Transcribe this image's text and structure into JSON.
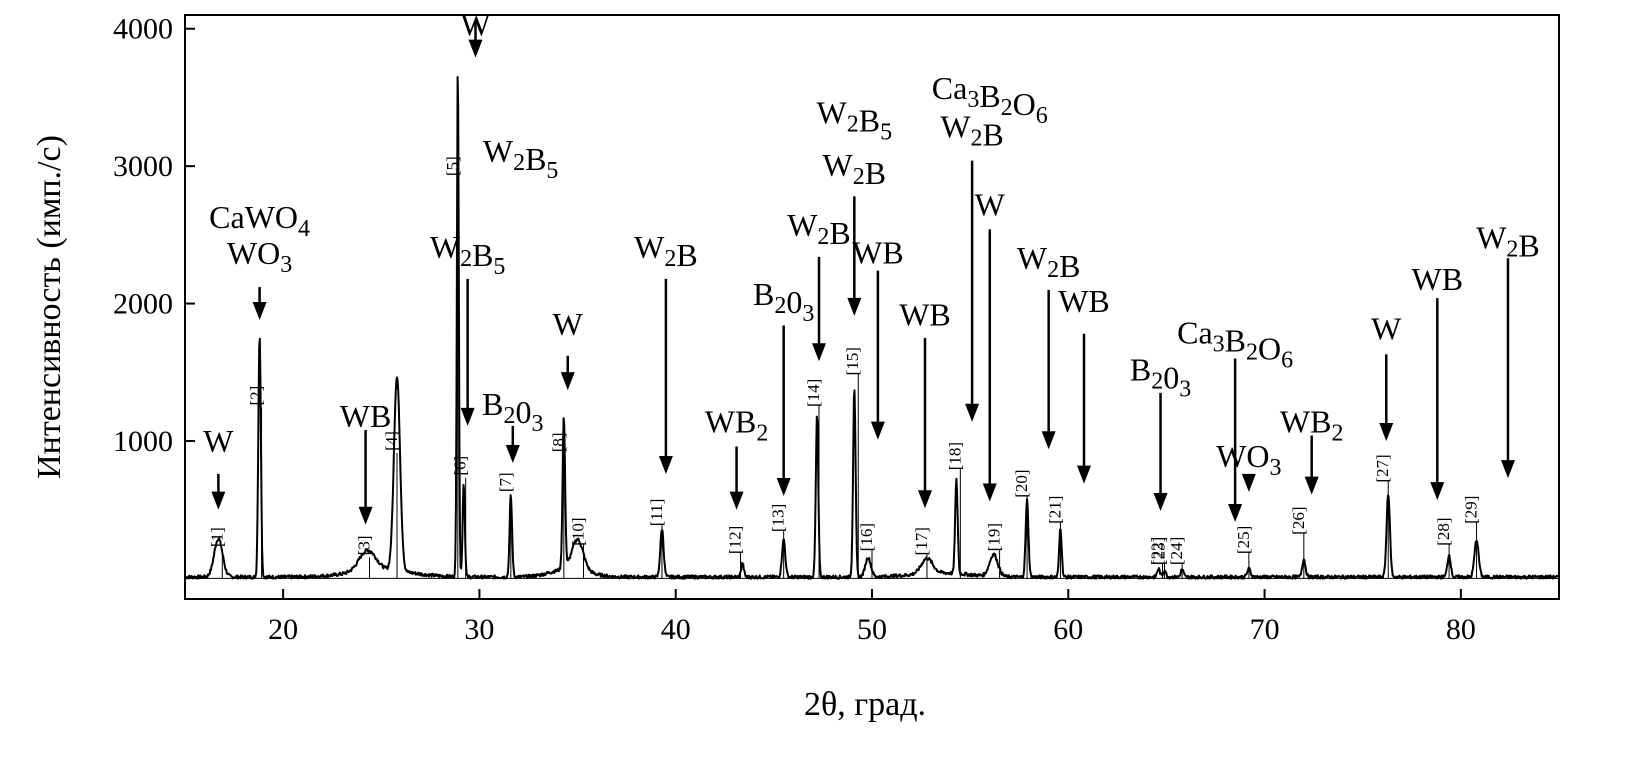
{
  "chart_data": {
    "type": "line",
    "xlabel": "2θ, град.",
    "ylabel": "Интенсивность (имп./с)",
    "xlim": [
      15,
      85
    ],
    "ylim": [
      -150,
      4100
    ],
    "x_ticks": [
      20,
      30,
      40,
      50,
      60,
      70,
      80
    ],
    "y_ticks": [
      1000,
      2000,
      3000,
      4000
    ],
    "y_tick_labels": [
      "1000",
      "2000",
      "3000",
      "4000"
    ],
    "grid": false,
    "legend": "none",
    "baseline": 0,
    "peaks": [
      {
        "id": "1",
        "x": 16.7,
        "height": 280,
        "width": 0.3
      },
      {
        "id": "2",
        "x": 18.8,
        "height": 1760,
        "width": 0.09
      },
      {
        "id": "3",
        "x": 24.3,
        "height": 150,
        "width": 0.6
      },
      {
        "id": "4",
        "x": 25.8,
        "height": 1420,
        "width": 0.22
      },
      {
        "id": "5",
        "x": 28.9,
        "height": 3720,
        "width": 0.07
      },
      {
        "id": "6",
        "x": 29.2,
        "height": 680,
        "width": 0.08
      },
      {
        "id": "7",
        "x": 31.6,
        "height": 590,
        "width": 0.09
      },
      {
        "id": "8",
        "x": 34.3,
        "height": 1100,
        "width": 0.09
      },
      {
        "id": "10",
        "x": 35.0,
        "height": 220,
        "width": 0.4
      },
      {
        "id": "11",
        "x": 39.3,
        "height": 350,
        "width": 0.12
      },
      {
        "id": "12",
        "x": 43.4,
        "height": 100,
        "width": 0.1
      },
      {
        "id": "13",
        "x": 45.5,
        "height": 270,
        "width": 0.12
      },
      {
        "id": "14",
        "x": 47.2,
        "height": 1180,
        "width": 0.09
      },
      {
        "id": "15",
        "x": 49.1,
        "height": 1380,
        "width": 0.09
      },
      {
        "id": "16",
        "x": 49.8,
        "height": 140,
        "width": 0.2
      },
      {
        "id": "17",
        "x": 52.8,
        "height": 110,
        "width": 0.4
      },
      {
        "id": "18",
        "x": 54.3,
        "height": 680,
        "width": 0.09
      },
      {
        "id": "19",
        "x": 56.2,
        "height": 160,
        "width": 0.3
      },
      {
        "id": "20",
        "x": 57.9,
        "height": 560,
        "width": 0.1
      },
      {
        "id": "21",
        "x": 59.6,
        "height": 360,
        "width": 0.09
      },
      {
        "id": "22",
        "x": 64.6,
        "height": 60,
        "width": 0.1
      },
      {
        "id": "23",
        "x": 64.9,
        "height": 50,
        "width": 0.1
      },
      {
        "id": "24",
        "x": 65.8,
        "height": 55,
        "width": 0.1
      },
      {
        "id": "25",
        "x": 69.2,
        "height": 60,
        "width": 0.12
      },
      {
        "id": "26",
        "x": 72.0,
        "height": 130,
        "width": 0.12
      },
      {
        "id": "27",
        "x": 76.3,
        "height": 610,
        "width": 0.12
      },
      {
        "id": "28",
        "x": 79.4,
        "height": 160,
        "width": 0.12
      },
      {
        "id": "29",
        "x": 80.8,
        "height": 270,
        "width": 0.15
      }
    ],
    "peak_labels": [
      {
        "text": "[1]",
        "x": 16.9,
        "y": 300
      },
      {
        "text": "[2]",
        "x": 18.9,
        "y": 1330
      },
      {
        "text": "[3]",
        "x": 24.4,
        "y": 240
      },
      {
        "text": "[4]",
        "x": 25.8,
        "y": 1000
      },
      {
        "text": "[5]",
        "x": 28.9,
        "y": 3000
      },
      {
        "text": "[6]",
        "x": 29.3,
        "y": 820
      },
      {
        "text": "[7]",
        "x": 31.6,
        "y": 700
      },
      {
        "text": "[8]",
        "x": 34.3,
        "y": 990
      },
      {
        "text": "[10]",
        "x": 35.3,
        "y": 340
      },
      {
        "text": "[11]",
        "x": 39.3,
        "y": 480
      },
      {
        "text": "[12]",
        "x": 43.3,
        "y": 280
      },
      {
        "text": "[13]",
        "x": 45.5,
        "y": 440
      },
      {
        "text": "[14]",
        "x": 47.3,
        "y": 1350
      },
      {
        "text": "[15]",
        "x": 49.3,
        "y": 1580
      },
      {
        "text": "[16]",
        "x": 50.0,
        "y": 300
      },
      {
        "text": "[17]",
        "x": 52.8,
        "y": 270
      },
      {
        "text": "[18]",
        "x": 54.5,
        "y": 890
      },
      {
        "text": "[19]",
        "x": 56.5,
        "y": 300
      },
      {
        "text": "[20]",
        "x": 57.9,
        "y": 690
      },
      {
        "text": "[21]",
        "x": 59.6,
        "y": 500
      },
      {
        "text": "[22]",
        "x": 64.8,
        "y": 200
      },
      {
        "text": "[23]",
        "x": 64.9,
        "y": 200
      },
      {
        "text": "[24]",
        "x": 65.8,
        "y": 200
      },
      {
        "text": "[25]",
        "x": 69.2,
        "y": 280
      },
      {
        "text": "[26]",
        "x": 72.0,
        "y": 420
      },
      {
        "text": "[27]",
        "x": 76.3,
        "y": 800
      },
      {
        "text": "[28]",
        "x": 79.4,
        "y": 340
      },
      {
        "text": "[29]",
        "x": 80.8,
        "y": 500
      }
    ],
    "annotations": [
      {
        "label": "W",
        "x": 16.7,
        "label_y": 920,
        "arrow_top": 760,
        "arrow_tip": 500
      },
      {
        "label": "CaWO₄\nWO₃",
        "x": 18.8,
        "label_y": 2550,
        "arrow_top": 2120,
        "arrow_tip": 1880
      },
      {
        "label": "WB",
        "x": 24.2,
        "label_y": 1100,
        "arrow_top": 1080,
        "arrow_tip": 390
      },
      {
        "label": "W",
        "x": 29.8,
        "label_y": 3950,
        "arrow_top": 4060,
        "arrow_tip": 3790
      },
      {
        "label": "W₂B₅",
        "x": 32.1,
        "label_y": 3030,
        "arrow_top": null,
        "arrow_tip": null
      },
      {
        "label": "W₂B₅",
        "x": 29.4,
        "label_y": 2330,
        "arrow_top": 2180,
        "arrow_tip": 1110
      },
      {
        "label": "B₂0₃",
        "x": 31.7,
        "label_y": 1190,
        "arrow_top": 1110,
        "arrow_tip": 840
      },
      {
        "label": "W",
        "x": 34.5,
        "label_y": 1770,
        "arrow_top": 1620,
        "arrow_tip": 1370
      },
      {
        "label": "W₂B",
        "x": 39.5,
        "label_y": 2330,
        "arrow_top": 2180,
        "arrow_tip": 760
      },
      {
        "label": "WB₂",
        "x": 43.1,
        "label_y": 1060,
        "arrow_top": 960,
        "arrow_tip": 500
      },
      {
        "label": "B₂0₃",
        "x": 45.5,
        "label_y": 1990,
        "arrow_top": 1840,
        "arrow_tip": 600
      },
      {
        "label": "W₂B",
        "x": 47.3,
        "label_y": 2490,
        "arrow_top": 2340,
        "arrow_tip": 1580
      },
      {
        "label": "W₂B₅",
        "x": 49.1,
        "label_y": 3310,
        "arrow_top": null,
        "arrow_tip": null
      },
      {
        "label": "W₂B",
        "x": 49.1,
        "label_y": 2930,
        "arrow_top": 2780,
        "arrow_tip": 1910
      },
      {
        "label": "WB",
        "x": 50.3,
        "label_y": 2290,
        "arrow_top": 2240,
        "arrow_tip": 1010
      },
      {
        "label": "WB",
        "x": 52.7,
        "label_y": 1840,
        "arrow_top": 1750,
        "arrow_tip": 510
      },
      {
        "label": "Ca₃B₂O₆",
        "x": 56.0,
        "label_y": 3490,
        "arrow_top": null,
        "arrow_tip": null
      },
      {
        "label": "W₂B",
        "x": 55.1,
        "label_y": 3210,
        "arrow_top": 3040,
        "arrow_tip": 1140
      },
      {
        "label": "W",
        "x": 56.0,
        "label_y": 2640,
        "arrow_top": 2540,
        "arrow_tip": 560
      },
      {
        "label": "W₂B",
        "x": 59.0,
        "label_y": 2250,
        "arrow_top": 2100,
        "arrow_tip": 940
      },
      {
        "label": "WB",
        "x": 60.8,
        "label_y": 1940,
        "arrow_top": 1780,
        "arrow_tip": 690
      },
      {
        "label": "B₂0₃",
        "x": 64.7,
        "label_y": 1440,
        "arrow_top": 1350,
        "arrow_tip": 490
      },
      {
        "label": "Ca₃B₂O₆",
        "x": 68.5,
        "label_y": 1710,
        "arrow_top": 1600,
        "arrow_tip": 410
      },
      {
        "label": "WO₃",
        "x": 69.2,
        "label_y": 810,
        "arrow_top": 720,
        "arrow_tip": 630
      },
      {
        "label": "WB₂",
        "x": 72.4,
        "label_y": 1060,
        "arrow_top": 1040,
        "arrow_tip": 610
      },
      {
        "label": "W",
        "x": 76.2,
        "label_y": 1740,
        "arrow_top": 1630,
        "arrow_tip": 1000
      },
      {
        "label": "WB",
        "x": 78.8,
        "label_y": 2100,
        "arrow_top": 2040,
        "arrow_tip": 570
      },
      {
        "label": "W₂B",
        "x": 82.4,
        "label_y": 2400,
        "arrow_top": 2330,
        "arrow_tip": 730
      }
    ]
  }
}
